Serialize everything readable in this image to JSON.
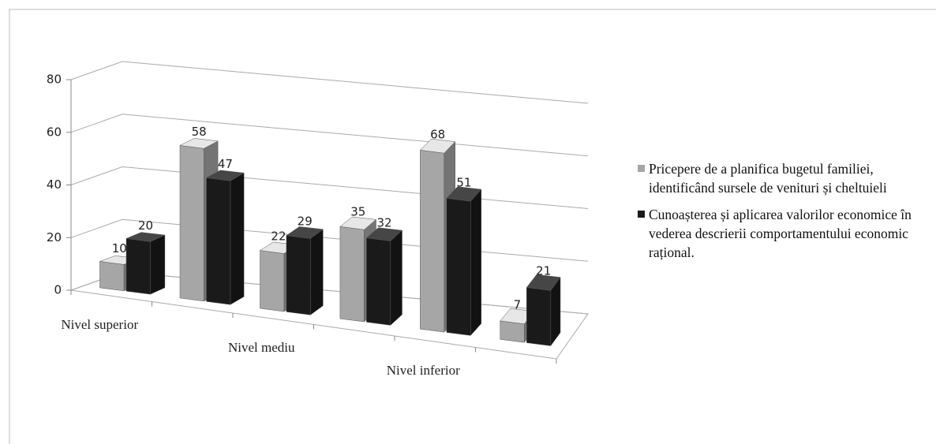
{
  "chart_data": {
    "type": "bar3d",
    "categories": [
      "Nivel superior",
      null,
      "Nivel mediu",
      null,
      "Nivel inferior",
      null
    ],
    "series": [
      {
        "name": "Pricepere de a planifica bugetul familiei, identificând sursele  de venituri și cheltuieli",
        "color": "#a6a6a6",
        "values": [
          10,
          58,
          22,
          35,
          68,
          7
        ]
      },
      {
        "name": "Cunoașterea și aplicarea valorilor economice în vederea descrierii comportamentului economic rațional.",
        "color": "#1a1a1a",
        "values": [
          20,
          47,
          29,
          32,
          51,
          21
        ]
      }
    ],
    "ylim": [
      0,
      80
    ],
    "yticks": [
      0,
      20,
      40,
      60,
      80
    ],
    "grid": true,
    "legend": "right"
  }
}
